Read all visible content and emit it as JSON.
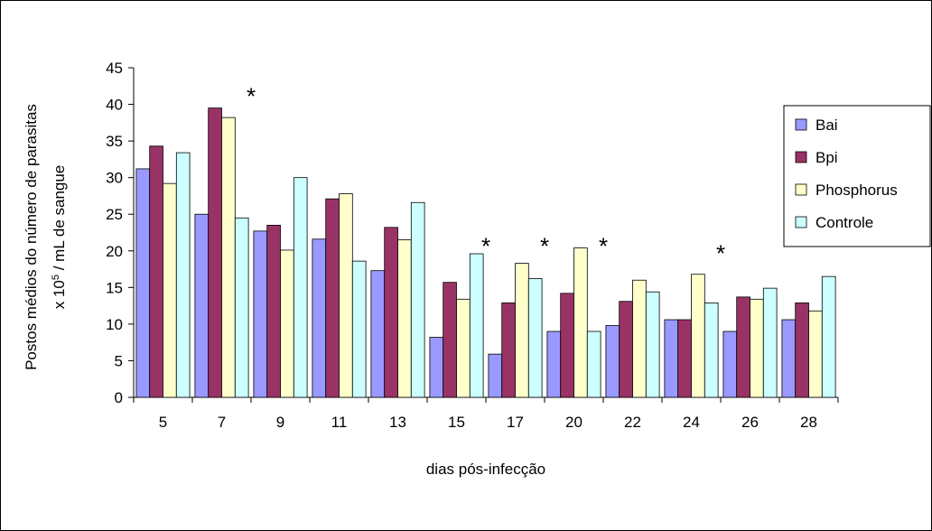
{
  "chart_data": {
    "type": "bar",
    "title": "",
    "xlabel": "dias pós-infecção",
    "ylabel_line1": "Postos médios do número de parasitas",
    "ylabel_line2_prefix": "x 10",
    "ylabel_line2_sup": "5",
    "ylabel_line2_suffix": " / mL de sangue",
    "ylim": [
      0,
      45
    ],
    "yticks": [
      "0",
      "5",
      "10",
      "15",
      "20",
      "25",
      "30",
      "35",
      "40",
      "45"
    ],
    "categories": [
      "5",
      "7",
      "9",
      "11",
      "13",
      "15",
      "17",
      "20",
      "22",
      "24",
      "26",
      "28"
    ],
    "series": [
      {
        "name": "Bai",
        "color": "#9999ff",
        "values": [
          31.2,
          25.0,
          22.7,
          21.6,
          17.3,
          8.2,
          5.9,
          9.0,
          9.8,
          10.6,
          9.0,
          10.6
        ]
      },
      {
        "name": "Bpi",
        "color": "#993366",
        "values": [
          34.3,
          39.5,
          23.5,
          27.1,
          23.2,
          15.7,
          12.9,
          14.2,
          13.1,
          10.6,
          13.7,
          12.9
        ]
      },
      {
        "name": "Phosphorus",
        "color": "#ffffcc",
        "values": [
          29.2,
          38.2,
          20.1,
          27.8,
          21.5,
          13.4,
          18.3,
          20.4,
          16.0,
          16.8,
          13.4,
          11.8
        ]
      },
      {
        "name": "Controle",
        "color": "#ccffff",
        "values": [
          33.4,
          24.5,
          30.0,
          18.6,
          26.6,
          19.6,
          16.2,
          9.0,
          14.4,
          12.9,
          14.9,
          16.5
        ]
      }
    ],
    "annotations": [
      {
        "text": "*",
        "category_index": 1,
        "y": 42
      },
      {
        "text": "*",
        "category_index": 5,
        "y": 21.5
      },
      {
        "text": "*",
        "category_index": 6,
        "y": 21.5
      },
      {
        "text": "*",
        "category_index": 7,
        "y": 21.5
      },
      {
        "text": "*",
        "category_index": 9,
        "y": 20.5
      }
    ],
    "legend_position": "right",
    "grid": false
  }
}
